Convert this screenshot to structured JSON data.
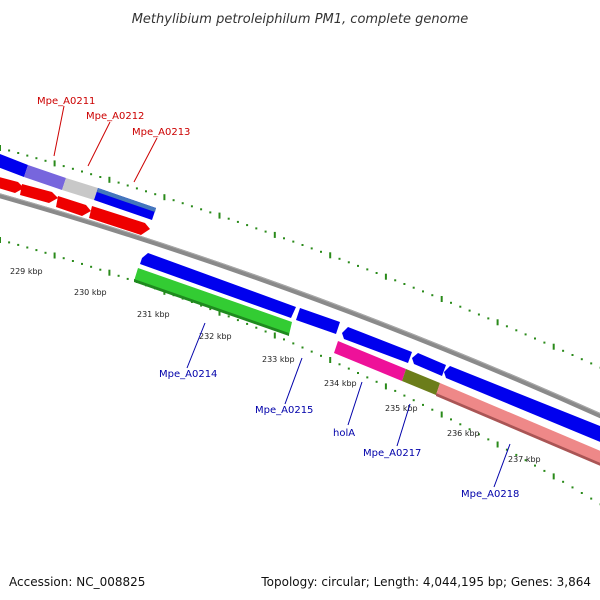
{
  "title": "Methylibium petroleiphilum PM1, complete genome",
  "footer": {
    "accession": "Accession: NC_008825",
    "topology": "Topology: circular; Length: 4,044,195 bp; Genes: 3,864"
  },
  "colors": {
    "tick": "#2a8a1a",
    "backbone": "#8a8a8a",
    "label_top": "#cc0000",
    "label_bottom": "#0000aa",
    "blue": "#0000ee",
    "red": "#ee0000",
    "green": "#33cc33",
    "magenta": "#ee1199",
    "olive": "#6b7d1a",
    "salmon": "#ee8888",
    "purple": "#7766dd",
    "grey": "#c8c8c8",
    "steel": "#4477bb"
  },
  "kbp_labels": [
    "229 kbp",
    "230 kbp",
    "231 kbp",
    "232 kbp",
    "233 kbp",
    "234 kbp",
    "235 kbp",
    "236 kbp",
    "237 kbp"
  ],
  "gene_labels_top": [
    "Mpe_A0211",
    "Mpe_A0212",
    "Mpe_A0213"
  ],
  "gene_labels_bottom": [
    "Mpe_A0214",
    "Mpe_A0215",
    "holA",
    "Mpe_A0217",
    "Mpe_A0218"
  ]
}
